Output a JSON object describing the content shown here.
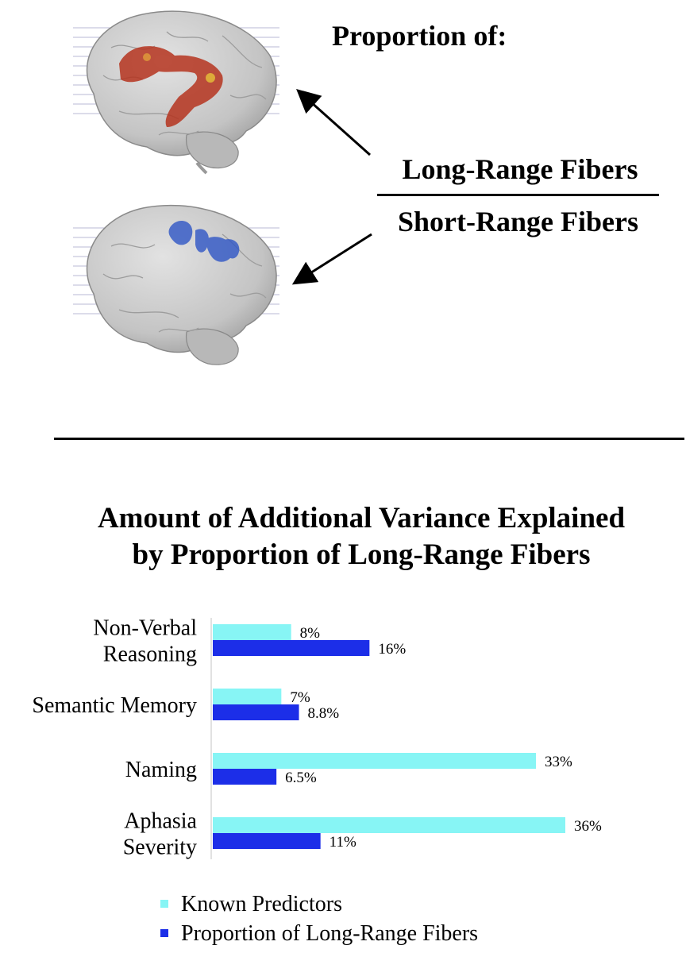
{
  "figure": {
    "heading": "Proportion of:",
    "fraction_numerator": "Long-Range Fibers",
    "fraction_denominator": "Short-Range Fibers",
    "brain_top_highlight_color": "#b5341f",
    "brain_bottom_highlight_color": "#2f56c6"
  },
  "chart_data": {
    "type": "bar",
    "orientation": "horizontal",
    "title": "Amount of Additional Variance Explained by Proportion of Long-Range Fibers",
    "title_lines": [
      "Amount of Additional Variance Explained",
      "by Proportion of Long-Range Fibers"
    ],
    "categories": [
      {
        "label_lines": [
          "Non-Verbal",
          "Reasoning"
        ]
      },
      {
        "label_lines": [
          "Semantic Memory"
        ]
      },
      {
        "label_lines": [
          "Naming"
        ]
      },
      {
        "label_lines": [
          "Aphasia",
          "Severity"
        ]
      }
    ],
    "series": [
      {
        "name": "Known Predictors",
        "color": "#87f5f5",
        "values": [
          8,
          7,
          33,
          36
        ],
        "labels": [
          "8%",
          "7%",
          "33%",
          "36%"
        ]
      },
      {
        "name": "Proportion of Long-Range Fibers",
        "color": "#1c2ee8",
        "values": [
          16,
          8.8,
          6.5,
          11
        ],
        "labels": [
          "16%",
          "8.8%",
          "6.5%",
          "11%"
        ]
      }
    ],
    "xlim": [
      0,
      36
    ],
    "grid": false,
    "legend_position": "bottom"
  }
}
